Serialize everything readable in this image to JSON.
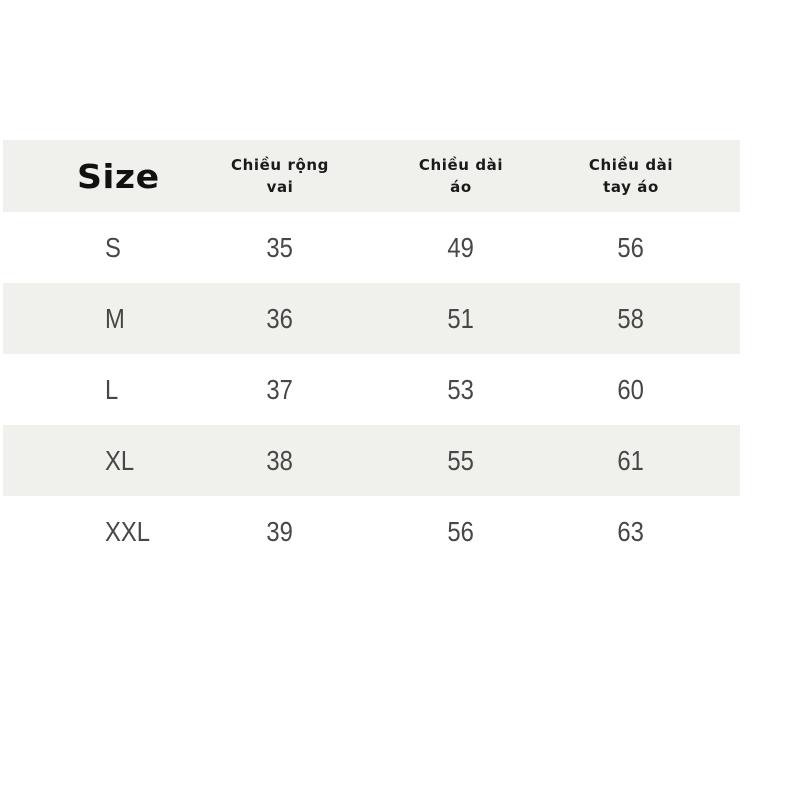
{
  "headers": {
    "size": "Size",
    "shoulder": [
      "Chiều rộng",
      "vai"
    ],
    "length": [
      "Chiều dài",
      "áo"
    ],
    "sleeve": [
      "Chiều dài",
      "tay áo"
    ]
  },
  "rows": [
    {
      "size": "S",
      "shoulder": "35",
      "length": "49",
      "sleeve": "56"
    },
    {
      "size": "M",
      "shoulder": "36",
      "length": "51",
      "sleeve": "58"
    },
    {
      "size": "L",
      "shoulder": "37",
      "length": "53",
      "sleeve": "60"
    },
    {
      "size": "XL",
      "shoulder": "38",
      "length": "55",
      "sleeve": "61"
    },
    {
      "size": "XXL",
      "shoulder": "39",
      "length": "56",
      "sleeve": "63"
    }
  ],
  "colors": {
    "shade": "#f0f0ec",
    "text": "#474747",
    "header_text": "#111111"
  }
}
